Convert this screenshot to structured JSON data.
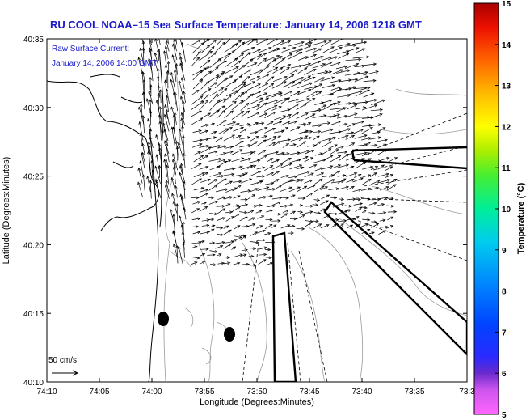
{
  "title": "RU COOL  NOAA–15  Sea Surface Temperature:  January 14, 2006 1218 GMT",
  "inset": {
    "line1": "Raw Surface Current:",
    "line2": "January 14, 2006 14:00 GMT"
  },
  "scale_label": "50 cm/s",
  "xaxis": {
    "label": "Longitude (Degrees:Minutes)",
    "ticks": [
      "74:10",
      "74:05",
      "74:00",
      "73:55",
      "73:50",
      "73:45",
      "73:40",
      "73:35",
      "73:3"
    ]
  },
  "yaxis": {
    "label": "Latitude (Degrees:Minutes)",
    "ticks": [
      "40:35",
      "40:30",
      "40:25",
      "40:20",
      "40:15",
      "40:10"
    ]
  },
  "colorbar": {
    "label": "Temperature (°C)",
    "ticks": [
      "15",
      "14",
      "13",
      "12",
      "11",
      "10",
      "9",
      "8",
      "7",
      "6",
      "5"
    ]
  },
  "colors": {
    "title": "#1a1acc",
    "inset": "#1a1acc",
    "arrows": "#000000"
  }
}
